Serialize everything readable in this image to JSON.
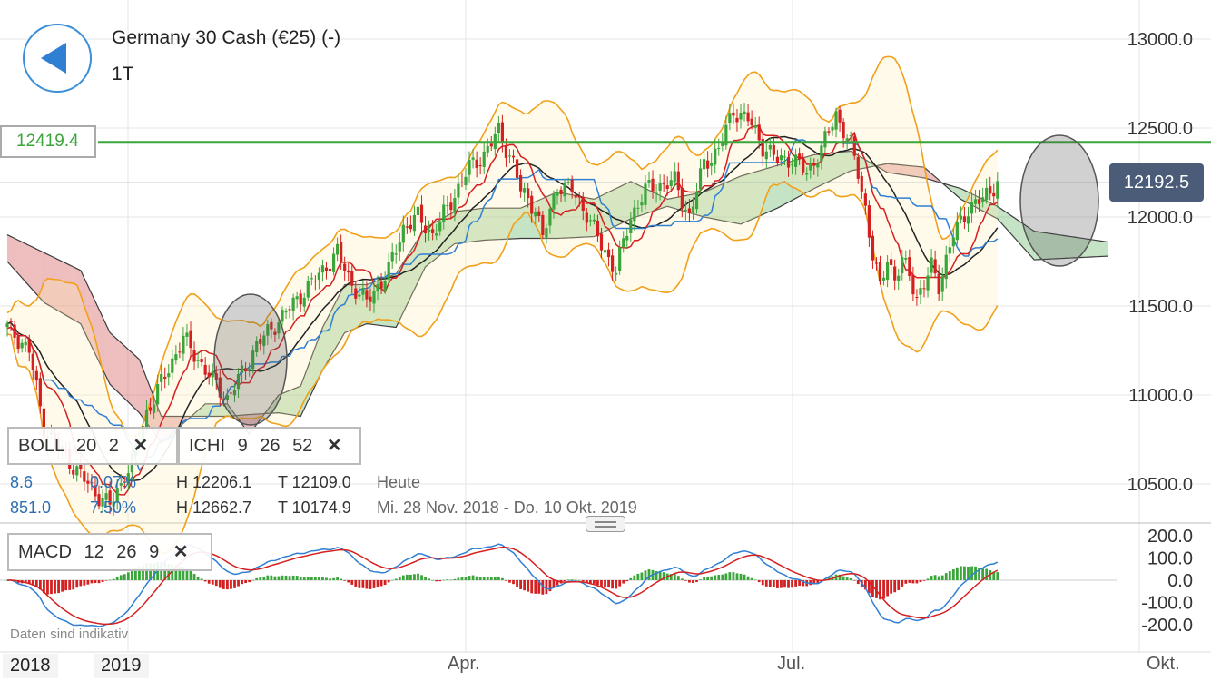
{
  "header": {
    "instrument": "Germany 30 Cash (€25) (-)",
    "timeframe": "1T"
  },
  "price_line": {
    "label": "12419.4",
    "value": 12419.4,
    "color": "#3aa53a"
  },
  "current_price": {
    "label": "12192.5",
    "value": 12192.5
  },
  "indicators": {
    "boll": {
      "name": "BOLL",
      "p1": "20",
      "p2": "2"
    },
    "ichi": {
      "name": "ICHI",
      "p1": "9",
      "p2": "26",
      "p3": "52"
    },
    "macd": {
      "name": "MACD",
      "p1": "12",
      "p2": "26",
      "p3": "9"
    }
  },
  "stats": {
    "row1": {
      "change": "8.6",
      "pct": "0.07%",
      "high": "H 12206.1",
      "low": "T 12109.0",
      "period": "Heute"
    },
    "row2": {
      "change": "851.0",
      "pct": "7.50%",
      "high": "H 12662.7",
      "low": "T 10174.9",
      "period": "Mi. 28 Nov. 2018 - Do. 10 Okt. 2019"
    }
  },
  "footer_note": "Daten sind indikativ",
  "x_axis": {
    "labels": [
      "2018",
      "2019",
      "Apr.",
      "Jul.",
      "Okt."
    ]
  },
  "chart_data": {
    "type": "candlestick",
    "price_axis": {
      "ticks": [
        10500,
        11000,
        11500,
        12000,
        12500,
        13000
      ],
      "tick_labels": [
        "10500.0",
        "11000.0",
        "11500.0",
        "12000.0",
        "12500.0",
        "13000.0"
      ]
    },
    "macd_axis": {
      "ticks": [
        200,
        100,
        0,
        -100,
        -200
      ],
      "tick_labels": [
        "200.0",
        "100.0",
        "0.0",
        "-100.0",
        "-200.0"
      ]
    },
    "close_anchors": [
      [
        0,
        11380
      ],
      [
        6,
        11250
      ],
      [
        10,
        10820
      ],
      [
        18,
        10600
      ],
      [
        24,
        10450
      ],
      [
        28,
        10380
      ],
      [
        34,
        10620
      ],
      [
        38,
        10900
      ],
      [
        44,
        11150
      ],
      [
        48,
        11320
      ],
      [
        52,
        11200
      ],
      [
        56,
        11080
      ],
      [
        60,
        10980
      ],
      [
        64,
        11120
      ],
      [
        68,
        11280
      ],
      [
        74,
        11420
      ],
      [
        80,
        11560
      ],
      [
        86,
        11700
      ],
      [
        90,
        11800
      ],
      [
        94,
        11620
      ],
      [
        98,
        11520
      ],
      [
        104,
        11700
      ],
      [
        108,
        11940
      ],
      [
        112,
        12000
      ],
      [
        116,
        11900
      ],
      [
        120,
        12050
      ],
      [
        126,
        12280
      ],
      [
        130,
        12350
      ],
      [
        134,
        12480
      ],
      [
        138,
        12300
      ],
      [
        140,
        12150
      ],
      [
        144,
        12050
      ],
      [
        146,
        11880
      ],
      [
        150,
        12180
      ],
      [
        154,
        12150
      ],
      [
        158,
        12020
      ],
      [
        162,
        11840
      ],
      [
        166,
        11700
      ],
      [
        170,
        12000
      ],
      [
        174,
        12150
      ],
      [
        178,
        12180
      ],
      [
        182,
        12200
      ],
      [
        186,
        12000
      ],
      [
        190,
        12300
      ],
      [
        194,
        12380
      ],
      [
        198,
        12600
      ],
      [
        202,
        12550
      ],
      [
        206,
        12400
      ],
      [
        210,
        12320
      ],
      [
        214,
        12330
      ],
      [
        218,
        12250
      ],
      [
        222,
        12380
      ],
      [
        226,
        12580
      ],
      [
        230,
        12400
      ],
      [
        232,
        12250
      ],
      [
        234,
        12050
      ],
      [
        236,
        11780
      ],
      [
        238,
        11600
      ],
      [
        240,
        11780
      ],
      [
        242,
        11650
      ],
      [
        244,
        11750
      ],
      [
        246,
        11680
      ],
      [
        248,
        11550
      ],
      [
        250,
        11620
      ],
      [
        252,
        11720
      ],
      [
        254,
        11620
      ],
      [
        258,
        11900
      ],
      [
        262,
        12050
      ],
      [
        266,
        12100
      ],
      [
        270,
        12200
      ]
    ],
    "ichimoku_cloud_anchors": [
      [
        0,
        11900,
        11750
      ],
      [
        10,
        11800,
        11520
      ],
      [
        20,
        11700,
        11400
      ],
      [
        28,
        11350,
        11060
      ],
      [
        36,
        11200,
        10900
      ],
      [
        42,
        10880,
        10730
      ],
      [
        54,
        10880,
        10950
      ],
      [
        60,
        10880,
        10950
      ],
      [
        66,
        10890,
        10780
      ],
      [
        74,
        10900,
        11000
      ],
      [
        80,
        10880,
        11050
      ],
      [
        86,
        11140,
        11380
      ],
      [
        92,
        11350,
        11620
      ],
      [
        98,
        11400,
        11620
      ],
      [
        106,
        11380,
        11680
      ],
      [
        114,
        11720,
        11940
      ],
      [
        122,
        11850,
        12030
      ],
      [
        130,
        11870,
        12050
      ],
      [
        140,
        11880,
        12050
      ],
      [
        150,
        11880,
        12140
      ],
      [
        160,
        11890,
        12100
      ],
      [
        170,
        11990,
        12200
      ],
      [
        180,
        12060,
        12100
      ],
      [
        190,
        12000,
        12140
      ],
      [
        200,
        11960,
        12230
      ],
      [
        210,
        12050,
        12290
      ],
      [
        220,
        12160,
        12350
      ],
      [
        230,
        12260,
        12370
      ],
      [
        240,
        12300,
        12250
      ],
      [
        250,
        12280,
        12220
      ],
      [
        260,
        12100,
        12160
      ],
      [
        270,
        11990,
        12060
      ],
      [
        280,
        11760,
        11920
      ],
      [
        300,
        11780,
        11860
      ]
    ]
  }
}
